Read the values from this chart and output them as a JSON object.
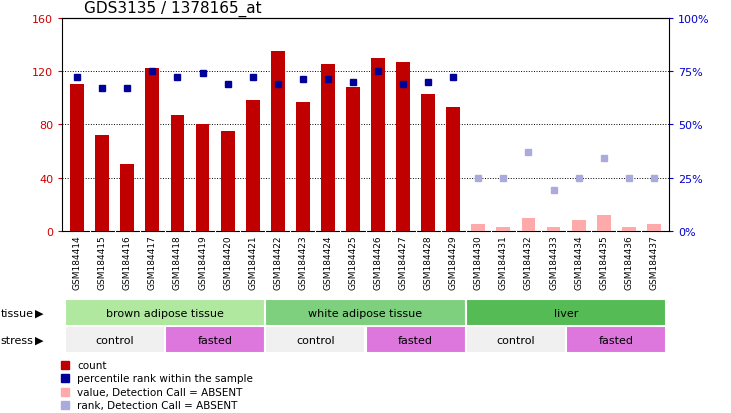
{
  "title": "GDS3135 / 1378165_at",
  "samples": [
    "GSM184414",
    "GSM184415",
    "GSM184416",
    "GSM184417",
    "GSM184418",
    "GSM184419",
    "GSM184420",
    "GSM184421",
    "GSM184422",
    "GSM184423",
    "GSM184424",
    "GSM184425",
    "GSM184426",
    "GSM184427",
    "GSM184428",
    "GSM184429",
    "GSM184430",
    "GSM184431",
    "GSM184432",
    "GSM184433",
    "GSM184434",
    "GSM184435",
    "GSM184436",
    "GSM184437"
  ],
  "count_values": [
    110,
    72,
    50,
    122,
    87,
    80,
    75,
    98,
    135,
    97,
    125,
    108,
    130,
    127,
    103,
    93,
    null,
    null,
    null,
    null,
    null,
    null,
    null,
    null
  ],
  "count_absent": [
    null,
    null,
    null,
    null,
    null,
    null,
    null,
    null,
    null,
    null,
    null,
    null,
    null,
    null,
    null,
    null,
    5,
    3,
    10,
    3,
    8,
    12,
    3,
    5
  ],
  "rank_values_pct": [
    72,
    67,
    67,
    75,
    72,
    74,
    69,
    72,
    69,
    71,
    71,
    70,
    75,
    69,
    70,
    72,
    null,
    null,
    null,
    null,
    null,
    null,
    null,
    null
  ],
  "rank_absent_pct": [
    null,
    null,
    null,
    null,
    null,
    null,
    null,
    null,
    null,
    null,
    null,
    null,
    null,
    null,
    null,
    null,
    25,
    25,
    37,
    19,
    25,
    34,
    25,
    25
  ],
  "tissues": [
    {
      "label": "brown adipose tissue",
      "start": 0,
      "end": 8,
      "color": "#90ee90"
    },
    {
      "label": "white adipose tissue",
      "start": 8,
      "end": 16,
      "color": "#7ed67e"
    },
    {
      "label": "liver",
      "start": 16,
      "end": 24,
      "color": "#5cbf5c"
    }
  ],
  "stresses": [
    {
      "label": "control",
      "start": 0,
      "end": 4,
      "color": "#f0f0f0"
    },
    {
      "label": "fasted",
      "start": 4,
      "end": 8,
      "color": "#dd77dd"
    },
    {
      "label": "control",
      "start": 8,
      "end": 12,
      "color": "#f0f0f0"
    },
    {
      "label": "fasted",
      "start": 12,
      "end": 16,
      "color": "#dd77dd"
    },
    {
      "label": "control",
      "start": 16,
      "end": 20,
      "color": "#f0f0f0"
    },
    {
      "label": "fasted",
      "start": 20,
      "end": 24,
      "color": "#dd77dd"
    }
  ],
  "ylim_left": [
    0,
    160
  ],
  "ylim_right": [
    0,
    100
  ],
  "yticks_left": [
    0,
    40,
    80,
    120,
    160
  ],
  "yticks_right": [
    0,
    25,
    50,
    75,
    100
  ],
  "ytick_labels_right": [
    "0%",
    "25%",
    "50%",
    "75%",
    "100%"
  ],
  "bar_color": "#c00000",
  "bar_absent_color": "#ffaaaa",
  "rank_color": "#000099",
  "rank_absent_color": "#aaaadd",
  "plot_bg": "#ffffff",
  "title_fontsize": 11,
  "axis_color_left": "#cc0000",
  "axis_color_right": "#0000cc",
  "xtick_bg": "#d8d8d8"
}
